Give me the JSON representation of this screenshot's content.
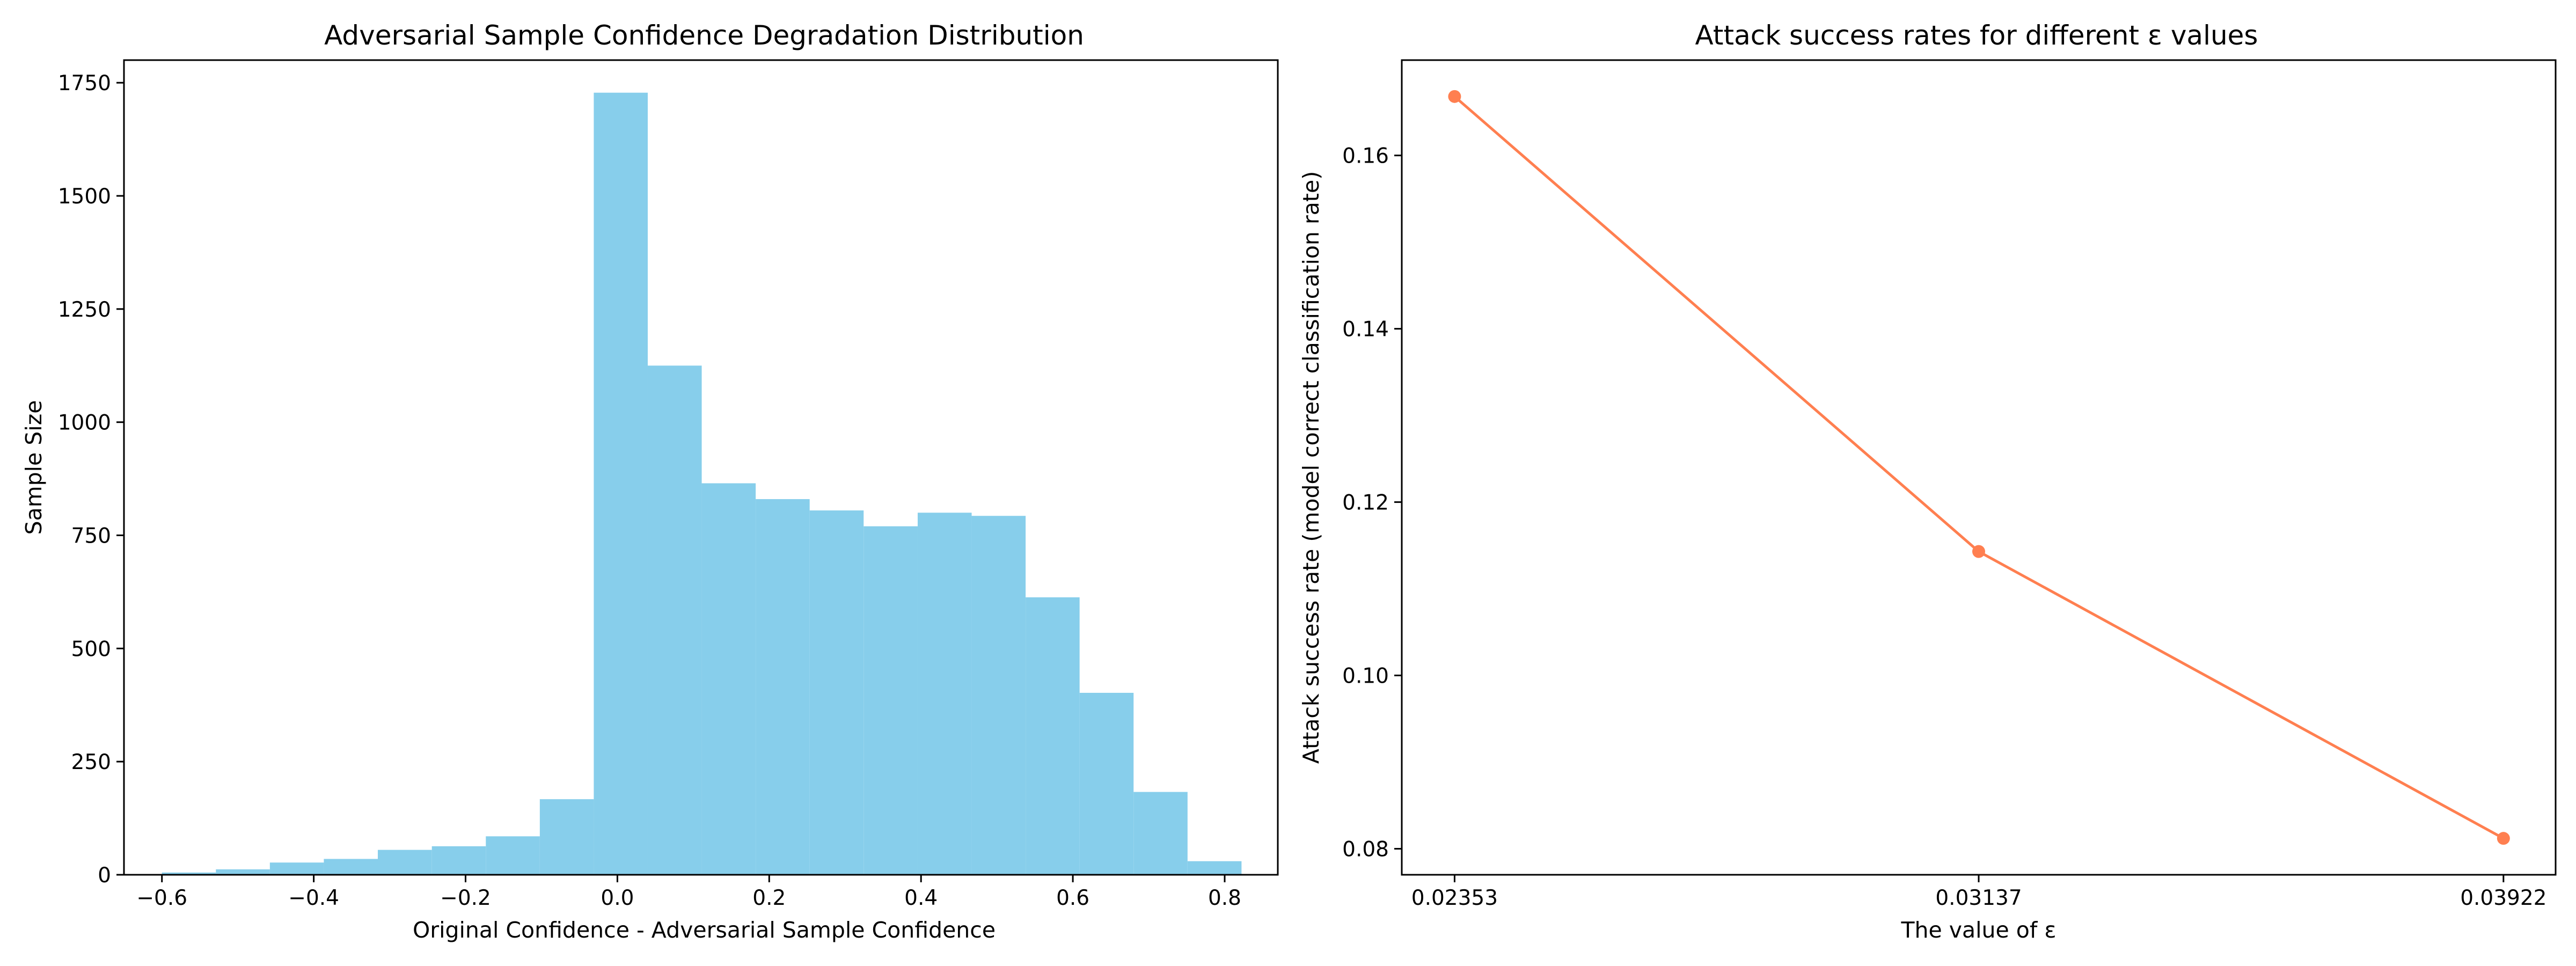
{
  "chart_data": [
    {
      "type": "bar",
      "title": "Adversarial Sample Confidence Degradation Distribution",
      "xlabel": "Original Confidence - Adversarial Sample Confidence",
      "ylabel": "Sample Size",
      "xlim": [
        -0.65,
        0.87
      ],
      "ylim": [
        0,
        1800
      ],
      "grid": false,
      "color": "#87ceeb",
      "xticks": [
        "-0.6",
        "-0.4",
        "-0.2",
        "0.0",
        "0.2",
        "0.4",
        "0.6",
        "0.8"
      ],
      "xtick_values": [
        -0.6,
        -0.4,
        -0.2,
        0.0,
        0.2,
        0.4,
        0.6,
        0.8
      ],
      "yticks": [
        "0",
        "250",
        "500",
        "750",
        "1000",
        "1250",
        "1500",
        "1750"
      ],
      "ytick_values": [
        0,
        250,
        500,
        750,
        1000,
        1250,
        1500,
        1750
      ],
      "bin_edges": [
        -0.6,
        -0.5289,
        -0.4578,
        -0.3867,
        -0.3156,
        -0.2444,
        -0.1733,
        -0.1022,
        -0.0311,
        0.04,
        0.1111,
        0.1822,
        0.2533,
        0.3244,
        0.3956,
        0.4667,
        0.5378,
        0.6089,
        0.68,
        0.7511,
        0.8222
      ],
      "values": [
        5,
        12,
        27,
        35,
        55,
        63,
        85,
        167,
        1728,
        1125,
        865,
        830,
        805,
        770,
        800,
        793,
        613,
        402,
        183,
        30
      ]
    },
    {
      "type": "line",
      "title": "Attack success rates for different ε values",
      "xlabel": "The value of ε",
      "ylabel": "Attack success rate (model correct classification rate)",
      "grid": false,
      "color": "#ff7f50",
      "categories": [
        "0.02353",
        "0.03137",
        "0.03922"
      ],
      "x": [
        0.02353,
        0.03137,
        0.03922
      ],
      "values": [
        0.1668,
        0.1143,
        0.0812
      ],
      "xlim": [
        0.02274,
        0.04
      ],
      "ylim": [
        0.077,
        0.171
      ],
      "yticks": [
        "0.08",
        "0.10",
        "0.12",
        "0.14",
        "0.16"
      ],
      "ytick_values": [
        0.08,
        0.1,
        0.12,
        0.14,
        0.16
      ]
    }
  ]
}
